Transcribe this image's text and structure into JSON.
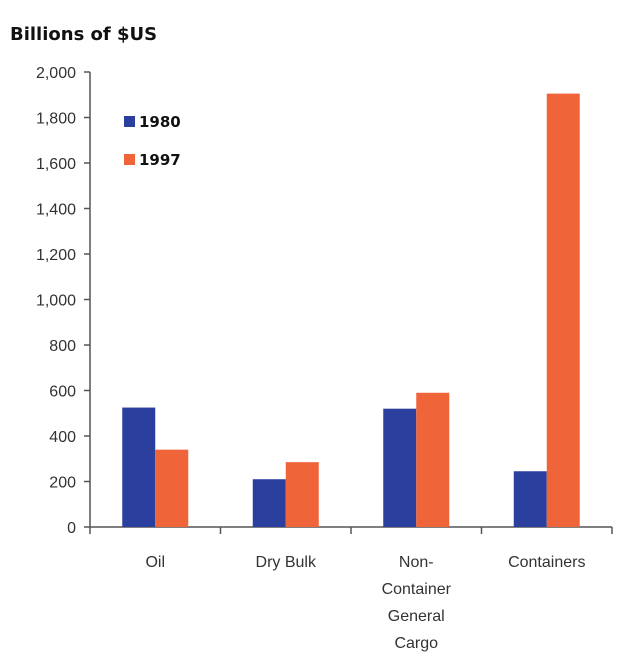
{
  "chart_data": {
    "type": "bar",
    "unit_title": "Billions of $US",
    "categories": [
      [
        "Oil"
      ],
      [
        "Dry Bulk"
      ],
      [
        "Non-",
        "Container",
        "General",
        "Cargo"
      ],
      [
        "Containers"
      ]
    ],
    "series": [
      {
        "name": "1980",
        "color": "#2b3f9e",
        "values": [
          525,
          210,
          520,
          245
        ]
      },
      {
        "name": "1997",
        "color": "#f0643a",
        "values": [
          340,
          285,
          590,
          1905
        ]
      }
    ],
    "ylim": [
      0,
      2000
    ],
    "yticks": [
      0,
      200,
      400,
      600,
      800,
      1000,
      1200,
      1400,
      1600,
      1800,
      2000
    ],
    "ytick_labels": [
      "0",
      "200",
      "400",
      "600",
      "800",
      "1,000",
      "1,200",
      "1,400",
      "1,600",
      "1,800",
      "2,000"
    ],
    "legend_position": "top-left",
    "grid": false
  }
}
